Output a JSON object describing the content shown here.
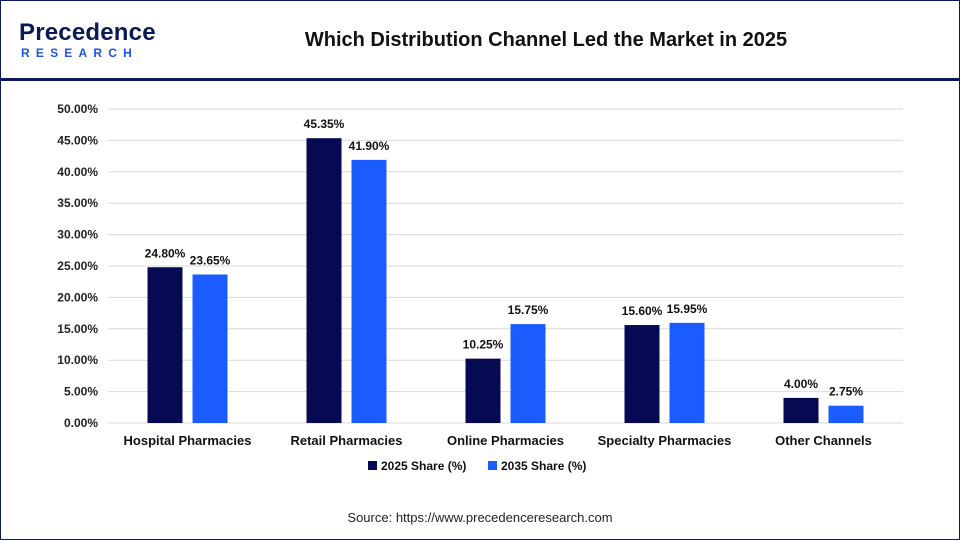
{
  "header": {
    "logo_name": "Precedence",
    "logo_sub": "RESEARCH",
    "title": "Which Distribution Channel Led the Market in 2025"
  },
  "source": "Source: https://www.precedenceresearch.com",
  "colors": {
    "brand_navy": "#0b1a57",
    "series_2025": "#060a52",
    "series_2035": "#1a5cff",
    "grid": "#d9d9d9"
  },
  "chart_data": {
    "type": "bar",
    "title": "",
    "xlabel": "",
    "ylabel": "",
    "ylim": [
      0,
      50
    ],
    "y_ticks": [
      "0.00%",
      "5.00%",
      "10.00%",
      "15.00%",
      "20.00%",
      "25.00%",
      "30.00%",
      "35.00%",
      "40.00%",
      "45.00%",
      "50.00%"
    ],
    "categories": [
      "Hospital Pharmacies",
      "Retail Pharmacies",
      "Online Pharmacies",
      "Specialty Pharmacies",
      "Other Channels"
    ],
    "series": [
      {
        "name": "2025 Share (%)",
        "color": "#060a52",
        "values": [
          24.8,
          45.35,
          10.25,
          15.6,
          4.0
        ],
        "labels": [
          "24.80%",
          "45.35%",
          "10.25%",
          "15.60%",
          "4.00%"
        ]
      },
      {
        "name": "2035 Share (%)",
        "color": "#1a5cff",
        "values": [
          23.65,
          41.9,
          15.75,
          15.95,
          2.75
        ],
        "labels": [
          "23.65%",
          "41.90%",
          "15.75%",
          "15.95%",
          "2.75%"
        ]
      }
    ],
    "grid": true,
    "legend_position": "bottom"
  }
}
